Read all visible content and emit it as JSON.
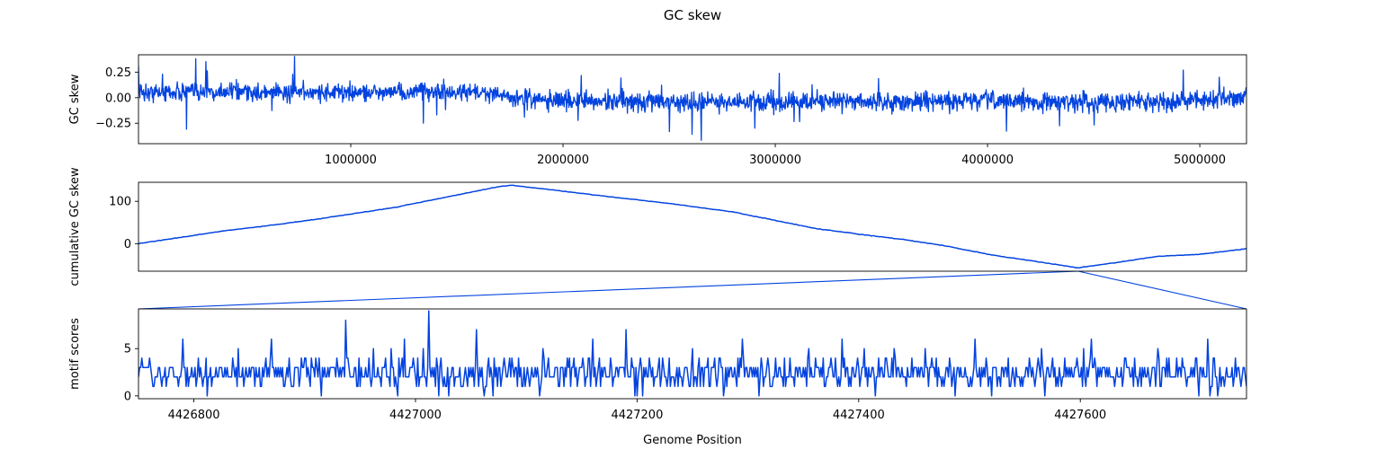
{
  "title": "GC skew",
  "xlabel": "Genome Position",
  "line_color": "#0343df",
  "chart_data": [
    {
      "type": "line",
      "ylabel": "GC skew",
      "xlim": [
        0,
        5220000
      ],
      "ylim": [
        -0.45,
        0.42
      ],
      "xticks": [
        1000000,
        2000000,
        3000000,
        4000000,
        5000000
      ],
      "xtick_labels": [
        "1000000",
        "2000000",
        "3000000",
        "4000000",
        "5000000"
      ],
      "yticks": [
        0.25,
        0.0,
        -0.25
      ],
      "ytick_labels": [
        "0.25",
        "0.00",
        "−0.25"
      ],
      "grid": false,
      "series": [
        {
          "name": "",
          "x": [
            0,
            250000,
            500000,
            750000,
            1000000,
            1250000,
            1350000,
            1500000,
            1700000,
            1760000,
            2000000,
            2500000,
            3000000,
            3500000,
            4000000,
            4500000,
            5000000,
            5220000
          ],
          "y": [
            0.05,
            0.06,
            0.05,
            0.05,
            0.05,
            0.05,
            0.07,
            0.05,
            0.05,
            0.0,
            -0.03,
            -0.04,
            -0.04,
            -0.04,
            -0.03,
            -0.04,
            -0.03,
            0.02
          ]
        }
      ]
    },
    {
      "type": "line",
      "ylabel": "cumulative GC skew",
      "xlim": [
        0,
        5220000
      ],
      "ylim": [
        -65,
        145
      ],
      "yticks": [
        100,
        0
      ],
      "ytick_labels": [
        "100",
        "0"
      ],
      "grid": false,
      "series": [
        {
          "name": "",
          "x": [
            0,
            200000,
            400000,
            600000,
            800000,
            1000000,
            1200000,
            1400000,
            1500000,
            1600000,
            1700000,
            1760000,
            1900000,
            2200000,
            2500000,
            2800000,
            3000000,
            3200000,
            3400000,
            3600000,
            3800000,
            4000000,
            4200000,
            4427000,
            4600000,
            4800000,
            5000000,
            5220000
          ],
          "y": [
            0,
            15,
            30,
            42,
            55,
            70,
            85,
            105,
            115,
            125,
            135,
            138,
            130,
            112,
            95,
            75,
            55,
            35,
            22,
            10,
            -5,
            -25,
            -40,
            -57,
            -45,
            -30,
            -25,
            -12
          ]
        }
      ]
    },
    {
      "type": "line",
      "ylabel": "motif scores",
      "xlim": [
        4426750,
        4427750
      ],
      "ylim": [
        -0.3,
        9.2
      ],
      "xticks": [
        4426800,
        4427000,
        4427200,
        4427400,
        4427600
      ],
      "xtick_labels": [
        "4426800",
        "4427000",
        "4427200",
        "4427400",
        "4427600"
      ],
      "yticks": [
        5,
        0
      ],
      "ytick_labels": [
        "5",
        "0"
      ],
      "grid": false,
      "series": [
        {
          "name": "",
          "x": [
            4426750,
            4426760,
            4426775,
            4426790,
            4426800,
            4426812,
            4426825,
            4426840,
            4426855,
            4426870,
            4426885,
            4426900,
            4426915,
            4426925,
            4426937,
            4426950,
            4426962,
            4426975,
            4426990,
            4427000,
            4427012,
            4427025,
            4427040,
            4427055,
            4427070,
            4427085,
            4427100,
            4427115,
            4427130,
            4427145,
            4427160,
            4427175,
            4427190,
            4427205,
            4427220,
            4427235,
            4427250,
            4427265,
            4427280,
            4427295,
            4427310,
            4427325,
            4427340,
            4427355,
            4427370,
            4427385,
            4427400,
            4427415,
            4427430,
            4427445,
            4427460,
            4427475,
            4427490,
            4427505,
            4427520,
            4427535,
            4427550,
            4427565,
            4427580,
            4427595,
            4427610,
            4427625,
            4427640,
            4427655,
            4427670,
            4427685,
            4427700,
            4427715,
            4427730,
            4427740,
            4427750
          ],
          "y": [
            2,
            4,
            1,
            6,
            2,
            0,
            3,
            5,
            1,
            6,
            2,
            4,
            0,
            3,
            8,
            1,
            5,
            2,
            6,
            2,
            9,
            1,
            3,
            7,
            0,
            4,
            2,
            5,
            1,
            3,
            6,
            2,
            7,
            0,
            4,
            2,
            5,
            1,
            3,
            6,
            0,
            4,
            2,
            5,
            1,
            6,
            3,
            0,
            4,
            2,
            5,
            1,
            3,
            6,
            0,
            4,
            2,
            5,
            1,
            3,
            6,
            2,
            4,
            1,
            5,
            2,
            3,
            6,
            1,
            4,
            1
          ]
        }
      ]
    }
  ],
  "zoom_connector": {
    "from_panel": 1,
    "to_panel": 2,
    "point": [
      4427000,
      -57
    ]
  }
}
